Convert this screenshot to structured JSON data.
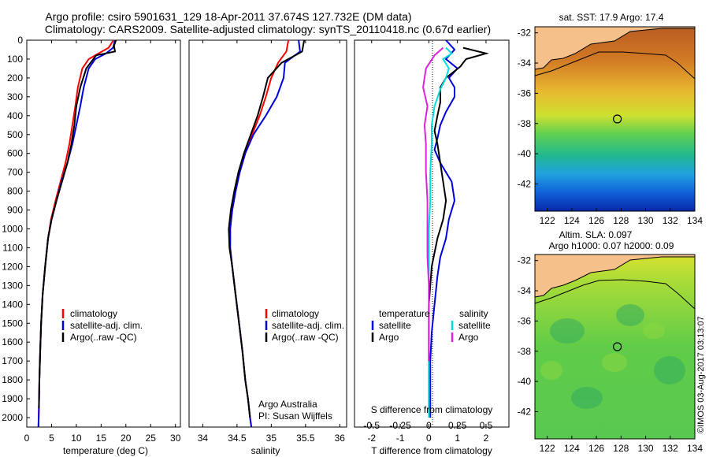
{
  "header": {
    "line1": "Argo profile: csiro 5901631_129 18-Apr-2011 37.674S 127.732E (DM data)",
    "line2": "Climatology: CARS2009. Satellite-adjusted climatology: synTS_20110418.nc (0.67d earlier)"
  },
  "side_label": "©IMOS 03-Aug-2017 03:13:07",
  "colors": {
    "climatology": "#ff0000",
    "satellite": "#0000dd",
    "argo": "#000000",
    "salinity_satellite": "#00dddd",
    "salinity_argo": "#dd22dd",
    "land": "#f5c08a"
  },
  "chart_data": [
    {
      "id": "temperature",
      "type": "line",
      "xlabel": "temperature (deg C)",
      "xlim": [
        0,
        31
      ],
      "ylim": [
        2050,
        0
      ],
      "xticks": [
        "0",
        "5",
        "10",
        "15",
        "20",
        "25",
        "30"
      ],
      "xtick_values": [
        0,
        5,
        10,
        15,
        20,
        25,
        30
      ],
      "yticks": [
        "0",
        "100",
        "200",
        "300",
        "400",
        "500",
        "600",
        "700",
        "800",
        "900",
        "1000",
        "1100",
        "1200",
        "1300",
        "1400",
        "1500",
        "1600",
        "1700",
        "1800",
        "1900",
        "2000"
      ],
      "ytick_values": [
        0,
        100,
        200,
        300,
        400,
        500,
        600,
        700,
        800,
        900,
        1000,
        1100,
        1200,
        1300,
        1400,
        1500,
        1600,
        1700,
        1800,
        1900,
        2000
      ],
      "legend": [
        "climatology",
        "satellite-adj. clim.",
        "Argo(..raw -QC)"
      ],
      "legend_position": "lower-middle",
      "series": [
        {
          "name": "climatology",
          "color": "#ff0000",
          "x": [
            17.5,
            16.5,
            14.5,
            12.5,
            11.2,
            10.3,
            9.8,
            9.2,
            8.6,
            7.8,
            6.8,
            5.8,
            4.9,
            4.3,
            3.7,
            3.2,
            2.9,
            2.7,
            2.55,
            2.45,
            2.35
          ],
          "y": [
            0,
            40,
            70,
            100,
            150,
            250,
            350,
            450,
            550,
            650,
            750,
            850,
            950,
            1050,
            1200,
            1350,
            1500,
            1650,
            1800,
            1950,
            2050
          ]
        },
        {
          "name": "satellite-adj. clim.",
          "color": "#0000dd",
          "x": [
            17.8,
            17.4,
            16.0,
            13.8,
            12.5,
            11.5,
            10.8,
            10.0,
            9.2,
            8.2,
            7.0,
            6.0,
            5.0,
            4.3,
            3.7,
            3.2,
            2.9,
            2.7,
            2.55,
            2.45,
            2.35
          ],
          "y": [
            0,
            40,
            70,
            100,
            150,
            250,
            350,
            450,
            550,
            650,
            750,
            850,
            950,
            1050,
            1200,
            1350,
            1500,
            1650,
            1800,
            1950,
            2050
          ]
        },
        {
          "name": "Argo(..raw -QC)",
          "color": "#000000",
          "x": [
            18.0,
            17.6,
            17.8,
            14.0,
            12.0,
            10.8,
            10.0,
            9.6,
            9.0,
            8.2,
            7.1,
            6.0,
            5.0,
            4.3,
            3.7,
            3.2,
            2.9,
            2.7,
            2.55,
            2.45
          ],
          "y": [
            0,
            30,
            60,
            80,
            150,
            250,
            350,
            450,
            550,
            650,
            750,
            850,
            950,
            1050,
            1200,
            1350,
            1500,
            1650,
            1800,
            1950
          ]
        }
      ]
    },
    {
      "id": "salinity",
      "type": "line",
      "xlabel": "salinity",
      "xlim": [
        33.8,
        36.1
      ],
      "ylim": [
        2050,
        0
      ],
      "xticks": [
        "34",
        "34.5",
        "35",
        "35.5",
        "36"
      ],
      "xtick_values": [
        34,
        34.5,
        35,
        35.5,
        36
      ],
      "legend": [
        "climatology",
        "satellite-adj. clim.",
        "Argo(..raw -QC)"
      ],
      "legend_position": "lower-right",
      "annotation": [
        "Argo Australia",
        "PI: Susan Wijffels"
      ],
      "series": [
        {
          "name": "climatology",
          "color": "#ff0000",
          "x": [
            35.25,
            35.22,
            35.1,
            35.0,
            34.92,
            34.83,
            34.72,
            34.62,
            34.54,
            34.48,
            34.43,
            34.4,
            34.4,
            34.43,
            34.48,
            34.53,
            34.58,
            34.62,
            34.66,
            34.69,
            34.71
          ],
          "y": [
            0,
            60,
            120,
            200,
            300,
            400,
            500,
            600,
            700,
            800,
            900,
            1000,
            1100,
            1200,
            1350,
            1500,
            1650,
            1800,
            1900,
            2000,
            2050
          ]
        },
        {
          "name": "satellite-adj. clim.",
          "color": "#0000dd",
          "x": [
            35.4,
            35.42,
            35.2,
            35.18,
            35.08,
            34.92,
            34.74,
            34.62,
            34.54,
            34.48,
            34.43,
            34.4,
            34.4,
            34.43,
            34.48,
            34.53,
            34.58,
            34.62,
            34.66,
            34.69,
            34.71
          ],
          "y": [
            0,
            60,
            120,
            200,
            300,
            400,
            500,
            600,
            700,
            800,
            900,
            1000,
            1100,
            1200,
            1350,
            1500,
            1650,
            1800,
            1900,
            2000,
            2050
          ]
        },
        {
          "name": "Argo(..raw -QC)",
          "color": "#000000",
          "x": [
            35.48,
            35.45,
            35.15,
            34.95,
            34.88,
            34.8,
            34.7,
            34.6,
            34.52,
            34.46,
            34.41,
            34.38,
            34.39,
            34.43,
            34.48,
            34.53,
            34.58,
            34.62,
            34.66,
            34.69
          ],
          "y": [
            0,
            60,
            120,
            200,
            300,
            400,
            500,
            600,
            700,
            800,
            900,
            1000,
            1100,
            1200,
            1350,
            1500,
            1650,
            1800,
            1900,
            2000
          ]
        }
      ]
    },
    {
      "id": "difference",
      "type": "line",
      "xlabel": "T difference from climatology",
      "x2label": "S difference from climatology",
      "xlim": [
        -2.6,
        2.8
      ],
      "ylim": [
        2050,
        0
      ],
      "xticks": [
        "-2",
        "-1",
        "0",
        "1",
        "2"
      ],
      "xtick_values": [
        -2,
        -1,
        0,
        1,
        2
      ],
      "x2ticks": [
        "-0.5",
        "-0.25",
        "0",
        "0.25",
        "0.5"
      ],
      "x2tick_values": [
        -2,
        -1,
        0,
        1,
        2
      ],
      "legend_groups": [
        {
          "title": "temperature",
          "items": [
            "satellite",
            "Argo"
          ]
        },
        {
          "title": "salinity",
          "items": [
            "satellite",
            "Argo"
          ]
        }
      ],
      "legend_position": "lower-middle",
      "series": [
        {
          "name": "temperature satellite",
          "color": "#0000dd",
          "x": [
            0.6,
            0.9,
            0.6,
            1.0,
            0.7,
            0.9,
            0.9,
            0.6,
            0.4,
            0.3,
            0.2,
            0.4,
            0.8,
            0.9,
            0.7,
            0.6,
            0.4,
            0.3,
            0.2,
            0.1,
            0.05,
            0.05,
            0.05
          ],
          "y": [
            0,
            50,
            100,
            150,
            200,
            250,
            300,
            380,
            450,
            520,
            580,
            650,
            750,
            850,
            950,
            1050,
            1150,
            1250,
            1400,
            1550,
            1700,
            1850,
            2000
          ]
        },
        {
          "name": "temperature Argo",
          "color": "#000000",
          "x": [
            1.2,
            2.0,
            1.3,
            1.1,
            0.6,
            0.4,
            0.4,
            0.3,
            0.2,
            0.3,
            0.4,
            0.5,
            0.6,
            0.5,
            0.3,
            0.1,
            0.0,
            0.0,
            0.0,
            0.0
          ],
          "y": [
            40,
            70,
            100,
            140,
            200,
            250,
            330,
            400,
            480,
            550,
            650,
            750,
            850,
            950,
            1050,
            1200,
            1400,
            1600,
            1800,
            1950
          ]
        },
        {
          "name": "salinity satellite",
          "color": "#00dddd",
          "x": [
            0.6,
            0.8,
            0.5,
            0.7,
            0.6,
            0.4,
            0.2,
            0.1,
            0.1,
            0.05,
            0.05,
            0.0,
            0.0,
            0.0,
            0.0,
            0.0
          ],
          "y": [
            40,
            70,
            100,
            150,
            200,
            260,
            350,
            450,
            550,
            700,
            850,
            1000,
            1200,
            1500,
            1800,
            2000
          ]
        },
        {
          "name": "salinity Argo",
          "color": "#dd22dd",
          "x": [
            0.5,
            0.2,
            -0.1,
            -0.2,
            -0.05,
            -0.15,
            -0.1,
            -0.1,
            -0.05,
            -0.05,
            -0.05,
            0.0,
            0.0,
            0.0
          ],
          "y": [
            40,
            80,
            150,
            250,
            350,
            450,
            550,
            700,
            850,
            1000,
            1150,
            1300,
            1500,
            1700
          ]
        }
      ]
    }
  ],
  "maps": [
    {
      "id": "sst",
      "title": "sat. SST: 17.9 Argo: 17.4",
      "xticks": [
        "122",
        "124",
        "126",
        "128",
        "130",
        "132",
        "134"
      ],
      "yticks": [
        "-32",
        "-34",
        "-36",
        "-38",
        "-40",
        "-42"
      ],
      "float_lon": 127.7,
      "float_lat": -37.7
    },
    {
      "id": "sla",
      "title_line1": "Altim. SLA: 0.097",
      "title_line2": "Argo h1000: 0.07 h2000: 0.09",
      "xticks": [
        "122",
        "124",
        "126",
        "128",
        "130",
        "132",
        "134"
      ],
      "yticks": [
        "-32",
        "-34",
        "-36",
        "-38",
        "-40",
        "-42"
      ],
      "float_lon": 127.7,
      "float_lat": -37.7
    }
  ]
}
